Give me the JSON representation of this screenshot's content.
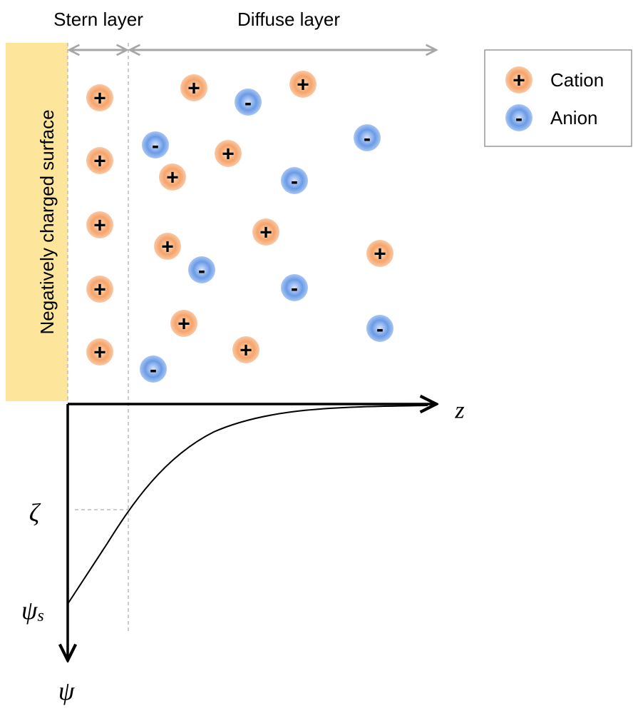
{
  "layers": {
    "stern": "Stern layer",
    "diffuse": "Diffuse layer"
  },
  "surface_label": "Negatively charged surface",
  "legend": {
    "items": [
      {
        "symbol": "+",
        "label": "Cation"
      },
      {
        "symbol": "-",
        "label": "Anion"
      }
    ]
  },
  "axes": {
    "z": "z",
    "psi": "ψ",
    "zeta": "ζ",
    "psi_s": {
      "main": "ψ",
      "subscript": "s"
    }
  }
}
